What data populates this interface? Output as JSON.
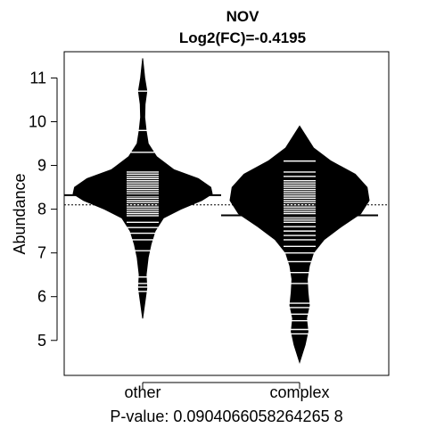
{
  "chart_data": {
    "type": "beanplot",
    "title": "NOV",
    "subtitle": "Log2(FC)=-0.4195",
    "ylabel": "Abundance",
    "xlabel": "P-value: 0.0904066058264265 8",
    "categories": [
      "other",
      "complex"
    ],
    "ylim": [
      4.2,
      11.6
    ],
    "yticks": [
      5,
      6,
      7,
      8,
      9,
      10,
      11
    ],
    "overall_mean": 8.1,
    "grid": false,
    "legend": "none",
    "colors": {
      "bean": "#000000",
      "line": "#ffffff",
      "background": "#ffffff"
    },
    "series": [
      {
        "category": "other",
        "mean": 8.32,
        "density": [
          [
            5.5,
            0
          ],
          [
            5.9,
            0.035
          ],
          [
            6.2,
            0.06
          ],
          [
            6.5,
            0.05
          ],
          [
            6.9,
            0.08
          ],
          [
            7.2,
            0.12
          ],
          [
            7.5,
            0.18
          ],
          [
            7.8,
            0.3
          ],
          [
            8.0,
            0.55
          ],
          [
            8.2,
            0.85
          ],
          [
            8.35,
            1.0
          ],
          [
            8.5,
            0.98
          ],
          [
            8.7,
            0.8
          ],
          [
            8.9,
            0.45
          ],
          [
            9.2,
            0.2
          ],
          [
            9.5,
            0.08
          ],
          [
            9.8,
            0.05
          ],
          [
            10.1,
            0.03
          ],
          [
            10.4,
            0.035
          ],
          [
            10.7,
            0.06
          ],
          [
            11.0,
            0.03
          ],
          [
            11.45,
            0
          ]
        ],
        "observations": [
          6.12,
          6.22,
          6.3,
          6.45,
          7.05,
          7.3,
          7.45,
          7.58,
          7.7,
          7.85,
          7.9,
          7.95,
          8.0,
          8.05,
          8.1,
          8.15,
          8.2,
          8.25,
          8.3,
          8.35,
          8.4,
          8.45,
          8.5,
          8.55,
          8.6,
          8.65,
          8.7,
          8.75,
          8.8,
          8.85,
          9.3,
          9.8,
          10.7
        ]
      },
      {
        "category": "complex",
        "mean": 7.86,
        "density": [
          [
            4.5,
            0
          ],
          [
            4.9,
            0.08
          ],
          [
            5.2,
            0.12
          ],
          [
            5.5,
            0.1
          ],
          [
            5.8,
            0.14
          ],
          [
            6.1,
            0.12
          ],
          [
            6.4,
            0.11
          ],
          [
            6.7,
            0.14
          ],
          [
            7.0,
            0.2
          ],
          [
            7.3,
            0.35
          ],
          [
            7.6,
            0.6
          ],
          [
            7.9,
            0.88
          ],
          [
            8.2,
            1.0
          ],
          [
            8.5,
            0.97
          ],
          [
            8.8,
            0.8
          ],
          [
            9.1,
            0.45
          ],
          [
            9.4,
            0.2
          ],
          [
            9.7,
            0.08
          ],
          [
            9.9,
            0
          ]
        ],
        "observations": [
          5.15,
          5.25,
          5.45,
          5.6,
          5.75,
          5.85,
          6.3,
          6.55,
          6.8,
          7.0,
          7.15,
          7.3,
          7.4,
          7.5,
          7.6,
          7.7,
          7.75,
          7.8,
          7.85,
          7.9,
          7.95,
          8.0,
          8.05,
          8.1,
          8.15,
          8.2,
          8.25,
          8.3,
          8.35,
          8.4,
          8.45,
          8.5,
          8.55,
          8.6,
          8.65,
          8.75,
          8.85,
          9.1
        ]
      }
    ]
  }
}
